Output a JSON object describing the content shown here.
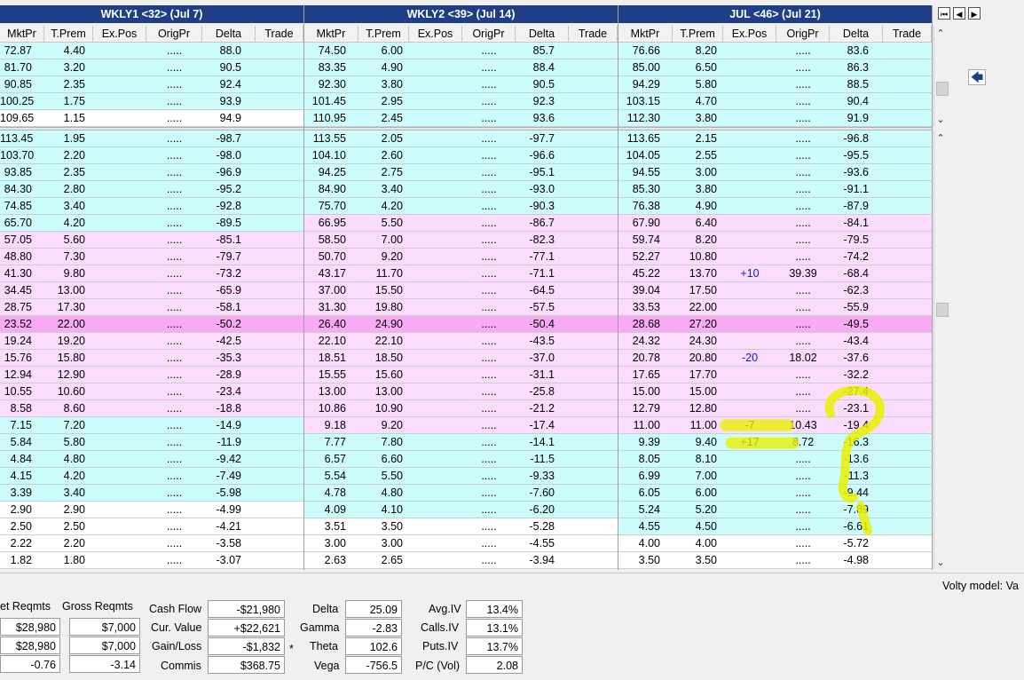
{
  "colors": {
    "cyan": "#ccfcfc",
    "pink": "#fcdcfc",
    "atm": "#f8aaf2",
    "white": "#ffffff",
    "header_blue": "#1f3e86",
    "highlighter": "#e8f000"
  },
  "headers": {
    "g1": "WKLY1 <32> (Jul 7)",
    "g2": "WKLY2 <39> (Jul 14)",
    "g3": "JUL <46> (Jul 21)",
    "columns": [
      "MktPr",
      "T.Prem",
      "Ex.Pos",
      "OrigPr",
      "Delta",
      "Trade"
    ]
  },
  "nav": {
    "first": "⏮",
    "prev": "◀",
    "next": "▶",
    "back": "🡄"
  },
  "calls": [
    {
      "g": [
        {
          "m": "72.87",
          "t": "4.40",
          "e": "",
          "o": ".....",
          "d": "88.0",
          "bg": "cyan"
        },
        {
          "m": "74.50",
          "t": "6.00",
          "e": "",
          "o": ".....",
          "d": "85.7",
          "bg": "cyan"
        },
        {
          "m": "76.66",
          "t": "8.20",
          "e": "",
          "o": ".....",
          "d": "83.6",
          "bg": "cyan"
        }
      ]
    },
    {
      "g": [
        {
          "m": "81.70",
          "t": "3.20",
          "e": "",
          "o": ".....",
          "d": "90.5",
          "bg": "cyan"
        },
        {
          "m": "83.35",
          "t": "4.90",
          "e": "",
          "o": ".....",
          "d": "88.4",
          "bg": "cyan"
        },
        {
          "m": "85.00",
          "t": "6.50",
          "e": "",
          "o": ".....",
          "d": "86.3",
          "bg": "cyan"
        }
      ]
    },
    {
      "g": [
        {
          "m": "90.85",
          "t": "2.35",
          "e": "",
          "o": ".....",
          "d": "92.4",
          "bg": "cyan"
        },
        {
          "m": "92.30",
          "t": "3.80",
          "e": "",
          "o": ".....",
          "d": "90.5",
          "bg": "cyan"
        },
        {
          "m": "94.29",
          "t": "5.80",
          "e": "",
          "o": ".....",
          "d": "88.5",
          "bg": "cyan"
        }
      ]
    },
    {
      "g": [
        {
          "m": "100.25",
          "t": "1.75",
          "e": "",
          "o": ".....",
          "d": "93.9",
          "bg": "cyan"
        },
        {
          "m": "101.45",
          "t": "2.95",
          "e": "",
          "o": ".....",
          "d": "92.3",
          "bg": "cyan"
        },
        {
          "m": "103.15",
          "t": "4.70",
          "e": "",
          "o": ".....",
          "d": "90.4",
          "bg": "cyan"
        }
      ]
    },
    {
      "g": [
        {
          "m": "109.65",
          "t": "1.15",
          "e": "",
          "o": ".....",
          "d": "94.9",
          "bg": "white"
        },
        {
          "m": "110.95",
          "t": "2.45",
          "e": "",
          "o": ".....",
          "d": "93.6",
          "bg": "cyan"
        },
        {
          "m": "112.30",
          "t": "3.80",
          "e": "",
          "o": ".....",
          "d": "91.9",
          "bg": "cyan"
        }
      ]
    }
  ],
  "puts": [
    {
      "g": [
        {
          "m": "113.45",
          "t": "1.95",
          "e": "",
          "o": ".....",
          "d": "-98.7",
          "bg": "cyan"
        },
        {
          "m": "113.55",
          "t": "2.05",
          "e": "",
          "o": ".....",
          "d": "-97.7",
          "bg": "cyan"
        },
        {
          "m": "113.65",
          "t": "2.15",
          "e": "",
          "o": ".....",
          "d": "-96.8",
          "bg": "cyan"
        }
      ]
    },
    {
      "g": [
        {
          "m": "103.70",
          "t": "2.20",
          "e": "",
          "o": ".....",
          "d": "-98.0",
          "bg": "cyan"
        },
        {
          "m": "104.10",
          "t": "2.60",
          "e": "",
          "o": ".....",
          "d": "-96.6",
          "bg": "cyan"
        },
        {
          "m": "104.05",
          "t": "2.55",
          "e": "",
          "o": ".....",
          "d": "-95.5",
          "bg": "cyan"
        }
      ]
    },
    {
      "g": [
        {
          "m": "93.85",
          "t": "2.35",
          "e": "",
          "o": ".....",
          "d": "-96.9",
          "bg": "cyan"
        },
        {
          "m": "94.25",
          "t": "2.75",
          "e": "",
          "o": ".....",
          "d": "-95.1",
          "bg": "cyan"
        },
        {
          "m": "94.55",
          "t": "3.00",
          "e": "",
          "o": ".....",
          "d": "-93.6",
          "bg": "cyan"
        }
      ]
    },
    {
      "g": [
        {
          "m": "84.30",
          "t": "2.80",
          "e": "",
          "o": ".....",
          "d": "-95.2",
          "bg": "cyan"
        },
        {
          "m": "84.90",
          "t": "3.40",
          "e": "",
          "o": ".....",
          "d": "-93.0",
          "bg": "cyan"
        },
        {
          "m": "85.30",
          "t": "3.80",
          "e": "",
          "o": ".....",
          "d": "-91.1",
          "bg": "cyan"
        }
      ]
    },
    {
      "g": [
        {
          "m": "74.85",
          "t": "3.40",
          "e": "",
          "o": ".....",
          "d": "-92.8",
          "bg": "cyan"
        },
        {
          "m": "75.70",
          "t": "4.20",
          "e": "",
          "o": ".....",
          "d": "-90.3",
          "bg": "cyan"
        },
        {
          "m": "76.38",
          "t": "4.90",
          "e": "",
          "o": ".....",
          "d": "-87.9",
          "bg": "cyan"
        }
      ]
    },
    {
      "g": [
        {
          "m": "65.70",
          "t": "4.20",
          "e": "",
          "o": ".....",
          "d": "-89.5",
          "bg": "cyan"
        },
        {
          "m": "66.95",
          "t": "5.50",
          "e": "",
          "o": ".....",
          "d": "-86.7",
          "bg": "pink"
        },
        {
          "m": "67.90",
          "t": "6.40",
          "e": "",
          "o": ".....",
          "d": "-84.1",
          "bg": "pink"
        }
      ]
    },
    {
      "g": [
        {
          "m": "57.05",
          "t": "5.60",
          "e": "",
          "o": ".....",
          "d": "-85.1",
          "bg": "pink"
        },
        {
          "m": "58.50",
          "t": "7.00",
          "e": "",
          "o": ".....",
          "d": "-82.3",
          "bg": "pink"
        },
        {
          "m": "59.74",
          "t": "8.20",
          "e": "",
          "o": ".....",
          "d": "-79.5",
          "bg": "pink"
        }
      ]
    },
    {
      "g": [
        {
          "m": "48.80",
          "t": "7.30",
          "e": "",
          "o": ".....",
          "d": "-79.7",
          "bg": "pink"
        },
        {
          "m": "50.70",
          "t": "9.20",
          "e": "",
          "o": ".....",
          "d": "-77.1",
          "bg": "pink"
        },
        {
          "m": "52.27",
          "t": "10.80",
          "e": "",
          "o": ".....",
          "d": "-74.2",
          "bg": "pink"
        }
      ]
    },
    {
      "g": [
        {
          "m": "41.30",
          "t": "9.80",
          "e": "",
          "o": ".....",
          "d": "-73.2",
          "bg": "pink"
        },
        {
          "m": "43.17",
          "t": "11.70",
          "e": "",
          "o": ".....",
          "d": "-71.1",
          "bg": "pink"
        },
        {
          "m": "45.22",
          "t": "13.70",
          "e": "+10",
          "o": "39.39",
          "d": "-68.4",
          "bg": "pink"
        }
      ]
    },
    {
      "g": [
        {
          "m": "34.45",
          "t": "13.00",
          "e": "",
          "o": ".....",
          "d": "-65.9",
          "bg": "pink"
        },
        {
          "m": "37.00",
          "t": "15.50",
          "e": "",
          "o": ".....",
          "d": "-64.5",
          "bg": "pink"
        },
        {
          "m": "39.04",
          "t": "17.50",
          "e": "",
          "o": ".....",
          "d": "-62.3",
          "bg": "pink"
        }
      ]
    },
    {
      "g": [
        {
          "m": "28.75",
          "t": "17.30",
          "e": "",
          "o": ".....",
          "d": "-58.1",
          "bg": "pink"
        },
        {
          "m": "31.30",
          "t": "19.80",
          "e": "",
          "o": ".....",
          "d": "-57.5",
          "bg": "pink"
        },
        {
          "m": "33.53",
          "t": "22.00",
          "e": "",
          "o": ".....",
          "d": "-55.9",
          "bg": "pink"
        }
      ]
    },
    {
      "g": [
        {
          "m": "23.52",
          "t": "22.00",
          "e": "",
          "o": ".....",
          "d": "-50.2",
          "bg": "atm"
        },
        {
          "m": "26.40",
          "t": "24.90",
          "e": "",
          "o": ".....",
          "d": "-50.4",
          "bg": "atm"
        },
        {
          "m": "28.68",
          "t": "27.20",
          "e": "",
          "o": ".....",
          "d": "-49.5",
          "bg": "atm"
        }
      ]
    },
    {
      "g": [
        {
          "m": "19.24",
          "t": "19.20",
          "e": "",
          "o": ".....",
          "d": "-42.5",
          "bg": "pink"
        },
        {
          "m": "22.10",
          "t": "22.10",
          "e": "",
          "o": ".....",
          "d": "-43.5",
          "bg": "pink"
        },
        {
          "m": "24.32",
          "t": "24.30",
          "e": "",
          "o": ".....",
          "d": "-43.4",
          "bg": "pink"
        }
      ]
    },
    {
      "g": [
        {
          "m": "15.76",
          "t": "15.80",
          "e": "",
          "o": ".....",
          "d": "-35.3",
          "bg": "pink"
        },
        {
          "m": "18.51",
          "t": "18.50",
          "e": "",
          "o": ".....",
          "d": "-37.0",
          "bg": "pink"
        },
        {
          "m": "20.78",
          "t": "20.80",
          "e": "-20",
          "o": "18.02",
          "d": "-37.6",
          "bg": "pink"
        }
      ]
    },
    {
      "g": [
        {
          "m": "12.94",
          "t": "12.90",
          "e": "",
          "o": ".....",
          "d": "-28.9",
          "bg": "pink"
        },
        {
          "m": "15.55",
          "t": "15.60",
          "e": "",
          "o": ".....",
          "d": "-31.1",
          "bg": "pink"
        },
        {
          "m": "17.65",
          "t": "17.70",
          "e": "",
          "o": ".....",
          "d": "-32.2",
          "bg": "pink"
        }
      ]
    },
    {
      "g": [
        {
          "m": "10.55",
          "t": "10.60",
          "e": "",
          "o": ".....",
          "d": "-23.4",
          "bg": "pink"
        },
        {
          "m": "13.00",
          "t": "13.00",
          "e": "",
          "o": ".....",
          "d": "-25.8",
          "bg": "pink"
        },
        {
          "m": "15.00",
          "t": "15.00",
          "e": "",
          "o": ".....",
          "d": "-27.4",
          "bg": "pink"
        }
      ]
    },
    {
      "g": [
        {
          "m": "8.58",
          "t": "8.60",
          "e": "",
          "o": ".....",
          "d": "-18.8",
          "bg": "pink"
        },
        {
          "m": "10.86",
          "t": "10.90",
          "e": "",
          "o": ".....",
          "d": "-21.2",
          "bg": "pink"
        },
        {
          "m": "12.79",
          "t": "12.80",
          "e": "",
          "o": ".....",
          "d": "-23.1",
          "bg": "pink"
        }
      ]
    },
    {
      "g": [
        {
          "m": "7.15",
          "t": "7.20",
          "e": "",
          "o": ".....",
          "d": "-14.9",
          "bg": "cyan"
        },
        {
          "m": "9.18",
          "t": "9.20",
          "e": "",
          "o": ".....",
          "d": "-17.4",
          "bg": "pink"
        },
        {
          "m": "11.00",
          "t": "11.00",
          "e": "-7",
          "o": "10.43",
          "d": "-19.4",
          "bg": "pink"
        }
      ]
    },
    {
      "g": [
        {
          "m": "5.84",
          "t": "5.80",
          "e": "",
          "o": ".....",
          "d": "-11.9",
          "bg": "cyan"
        },
        {
          "m": "7.77",
          "t": "7.80",
          "e": "",
          "o": ".....",
          "d": "-14.1",
          "bg": "cyan"
        },
        {
          "m": "9.39",
          "t": "9.40",
          "e": "+17",
          "o": "8.72",
          "d": "-16.3",
          "bg": "cyan"
        }
      ]
    },
    {
      "g": [
        {
          "m": "4.84",
          "t": "4.80",
          "e": "",
          "o": ".....",
          "d": "-9.42",
          "bg": "cyan"
        },
        {
          "m": "6.57",
          "t": "6.60",
          "e": "",
          "o": ".....",
          "d": "-11.5",
          "bg": "cyan"
        },
        {
          "m": "8.05",
          "t": "8.10",
          "e": "",
          "o": ".....",
          "d": "-13.6",
          "bg": "cyan"
        }
      ]
    },
    {
      "g": [
        {
          "m": "4.15",
          "t": "4.20",
          "e": "",
          "o": ".....",
          "d": "-7.49",
          "bg": "cyan"
        },
        {
          "m": "5.54",
          "t": "5.50",
          "e": "",
          "o": ".....",
          "d": "-9.33",
          "bg": "cyan"
        },
        {
          "m": "6.99",
          "t": "7.00",
          "e": "",
          "o": ".....",
          "d": "-11.3",
          "bg": "cyan"
        }
      ]
    },
    {
      "g": [
        {
          "m": "3.39",
          "t": "3.40",
          "e": "",
          "o": ".....",
          "d": "-5.98",
          "bg": "cyan"
        },
        {
          "m": "4.78",
          "t": "4.80",
          "e": "",
          "o": ".....",
          "d": "-7.60",
          "bg": "cyan"
        },
        {
          "m": "6.05",
          "t": "6.00",
          "e": "",
          "o": ".....",
          "d": "-9.44",
          "bg": "cyan"
        }
      ]
    },
    {
      "g": [
        {
          "m": "2.90",
          "t": "2.90",
          "e": "",
          "o": ".....",
          "d": "-4.99",
          "bg": "white"
        },
        {
          "m": "4.09",
          "t": "4.10",
          "e": "",
          "o": ".....",
          "d": "-6.20",
          "bg": "cyan"
        },
        {
          "m": "5.24",
          "t": "5.20",
          "e": "",
          "o": ".....",
          "d": "-7.89",
          "bg": "cyan"
        }
      ]
    },
    {
      "g": [
        {
          "m": "2.50",
          "t": "2.50",
          "e": "",
          "o": ".....",
          "d": "-4.21",
          "bg": "white"
        },
        {
          "m": "3.51",
          "t": "3.50",
          "e": "",
          "o": ".....",
          "d": "-5.28",
          "bg": "white"
        },
        {
          "m": "4.55",
          "t": "4.50",
          "e": "",
          "o": ".....",
          "d": "-6.61",
          "bg": "cyan"
        }
      ]
    },
    {
      "g": [
        {
          "m": "2.22",
          "t": "2.20",
          "e": "",
          "o": ".....",
          "d": "-3.58",
          "bg": "white"
        },
        {
          "m": "3.00",
          "t": "3.00",
          "e": "",
          "o": ".....",
          "d": "-4.55",
          "bg": "white"
        },
        {
          "m": "4.00",
          "t": "4.00",
          "e": "",
          "o": ".....",
          "d": "-5.72",
          "bg": "white"
        }
      ]
    },
    {
      "g": [
        {
          "m": "1.82",
          "t": "1.80",
          "e": "",
          "o": ".....",
          "d": "-3.07",
          "bg": "white"
        },
        {
          "m": "2.63",
          "t": "2.65",
          "e": "",
          "o": ".....",
          "d": "-3.94",
          "bg": "white"
        },
        {
          "m": "3.50",
          "t": "3.50",
          "e": "",
          "o": ".....",
          "d": "-4.98",
          "bg": "white"
        }
      ]
    }
  ],
  "summary": {
    "net_reqmts_label": "et Reqmts",
    "gross_reqmts_label": "Gross Reqmts",
    "net_values": [
      "$28,980",
      "$28,980",
      "-0.76"
    ],
    "gross_values": [
      "$7,000",
      "$7,000",
      "-3.14"
    ],
    "cash_flow_label": "Cash Flow",
    "cash_flow": "-$21,980",
    "cur_value_label": "Cur. Value",
    "cur_value": "+$22,621",
    "gain_loss_label": "Gain/Loss",
    "gain_loss": "-$1,832",
    "gain_loss_mark": "*",
    "commis_label": "Commis",
    "commis": "$368.75",
    "delta_label": "Delta",
    "delta": "25.09",
    "gamma_label": "Gamma",
    "gamma": "-2.83",
    "theta_label": "Theta",
    "theta": "102.6",
    "vega_label": "Vega",
    "vega": "-756.5",
    "avg_iv_label": "Avg.IV",
    "avg_iv": "13.4%",
    "calls_iv_label": "Calls.IV",
    "calls_iv": "13.1%",
    "puts_iv_label": "Puts.IV",
    "puts_iv": "13.7%",
    "pc_vol_label": "P/C (Vol)",
    "pc_vol": "2.08",
    "volty_model": "Volty model: Va"
  }
}
